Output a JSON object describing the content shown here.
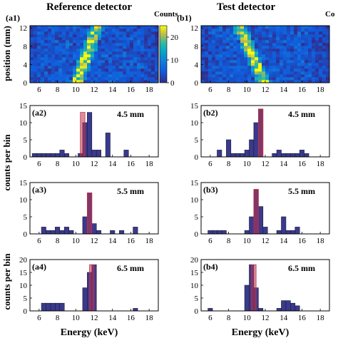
{
  "figure": {
    "left_title": "Reference detector",
    "right_title": "Test detector",
    "colorbar_label_left": "Counts",
    "colorbar_label_right": "Co",
    "y_label_top": "position (mm)",
    "y_label_mid": "counts per bin",
    "y_label_bottom": "counts per bin",
    "x_label": "Energy (keV)",
    "colors": {
      "bar": "#3a3a8c",
      "bar_edge": "#1a1a3a",
      "ref_bar": "#c0324a"
    }
  },
  "chart_data": [
    {
      "id": "a1",
      "panel_label": "(a1)",
      "type": "heatmap",
      "xlim": [
        5,
        19
      ],
      "xticks": [
        "6",
        "8",
        "10",
        "12",
        "14",
        "16",
        "18"
      ],
      "ylim": [
        0,
        12.5
      ],
      "yticks": [
        "0",
        "4",
        "8",
        "12"
      ],
      "colorbar": {
        "range": [
          0,
          25
        ],
        "ticks": [
          "0",
          "10",
          "20"
        ],
        "label": "Counts"
      },
      "ridge": {
        "start_energy": 10.2,
        "end_energy": 12.3
      }
    },
    {
      "id": "b1",
      "panel_label": "(b1)",
      "type": "heatmap",
      "xlim": [
        5,
        19
      ],
      "xticks": [
        "6",
        "8",
        "10",
        "12",
        "14",
        "16",
        "18"
      ],
      "ylim": [
        0,
        12.5
      ],
      "yticks": [
        "0",
        "4",
        "8",
        "12"
      ],
      "ridge": {
        "start_energy": 11.8,
        "end_energy": 9.2
      }
    },
    {
      "id": "a2",
      "panel_label": "(a2)",
      "type": "bar",
      "annotation": "4.5 mm",
      "xlim": [
        5,
        19
      ],
      "xticks": [
        "6",
        "8",
        "10",
        "12",
        "14",
        "16",
        "18"
      ],
      "ylim": [
        0,
        15
      ],
      "yticks": [
        "0",
        "5",
        "10",
        "15"
      ],
      "bin_width": 0.5,
      "x": [
        5.5,
        6.0,
        6.5,
        7.0,
        7.5,
        8.0,
        8.5,
        9.0,
        10.5,
        11.0,
        11.5,
        12.0,
        12.5,
        13.5,
        15.5
      ],
      "values": [
        1,
        1,
        1,
        1,
        1,
        1,
        2,
        1,
        1,
        10,
        13,
        2,
        2,
        7,
        2
      ],
      "reference": {
        "x": 10.75,
        "value": 13
      }
    },
    {
      "id": "b2",
      "panel_label": "(b2)",
      "type": "bar",
      "annotation": "4.5 mm",
      "xlim": [
        5,
        19
      ],
      "xticks": [
        "6",
        "8",
        "10",
        "12",
        "14",
        "16",
        "18"
      ],
      "ylim": [
        0,
        15
      ],
      "yticks": [
        "0",
        "5",
        "10",
        "15"
      ],
      "bin_width": 0.5,
      "x": [
        7.0,
        8.0,
        8.5,
        9.0,
        9.5,
        10.0,
        10.5,
        11.0,
        11.5,
        13.0,
        13.5,
        14.0,
        14.5,
        15.0,
        15.5,
        16.0,
        16.5
      ],
      "values": [
        2,
        5,
        1,
        1,
        1,
        2,
        5,
        10,
        14,
        1,
        2,
        1,
        1,
        1,
        1,
        2,
        1
      ],
      "reference": {
        "x": 11.5,
        "value": 14
      }
    },
    {
      "id": "a3",
      "panel_label": "(a3)",
      "type": "bar",
      "annotation": "5.5 mm",
      "xlim": [
        5,
        19
      ],
      "xticks": [
        "6",
        "8",
        "10",
        "12",
        "14",
        "16",
        "18"
      ],
      "ylim": [
        0,
        15
      ],
      "yticks": [
        "0",
        "5",
        "10",
        "15"
      ],
      "bin_width": 0.5,
      "x": [
        6.5,
        7.0,
        7.5,
        8.0,
        8.5,
        9.0,
        9.5,
        11.0,
        11.5,
        12.0,
        12.5,
        14.0,
        15.0,
        16.5
      ],
      "values": [
        2,
        1,
        1,
        2,
        1,
        2,
        1,
        5,
        12,
        3,
        1,
        1,
        1,
        2
      ],
      "reference": {
        "x": 11.5,
        "value": 12
      }
    },
    {
      "id": "b3",
      "panel_label": "(b3)",
      "type": "bar",
      "annotation": "5.5 mm",
      "xlim": [
        5,
        19
      ],
      "xticks": [
        "6",
        "8",
        "10",
        "12",
        "14",
        "16",
        "18"
      ],
      "ylim": [
        0,
        15
      ],
      "yticks": [
        "0",
        "5",
        "10",
        "15"
      ],
      "bin_width": 0.5,
      "x": [
        6.0,
        6.5,
        7.0,
        7.5,
        10.0,
        10.5,
        11.0,
        11.5,
        12.0,
        13.5,
        14.0,
        14.5,
        15.0,
        15.5
      ],
      "values": [
        1,
        1,
        1,
        1,
        1,
        5,
        13,
        8,
        2,
        1,
        5,
        1,
        1,
        2
      ],
      "reference": {
        "x": 11.0,
        "value": 13
      }
    },
    {
      "id": "a4",
      "panel_label": "(a4)",
      "type": "bar",
      "annotation": "6.5 mm",
      "xlim": [
        5,
        19
      ],
      "xticks": [
        "6",
        "8",
        "10",
        "12",
        "14",
        "16",
        "18"
      ],
      "ylim": [
        0,
        20
      ],
      "yticks": [
        "0",
        "5",
        "10",
        "15",
        "20"
      ],
      "bin_width": 0.5,
      "x": [
        6.5,
        7.0,
        7.5,
        8.0,
        8.5,
        11.0,
        11.5,
        12.0,
        16.5
      ],
      "values": [
        3,
        3,
        3,
        3,
        3,
        9,
        15,
        18,
        1
      ],
      "reference": {
        "x": 11.75,
        "value": 18
      }
    },
    {
      "id": "b4",
      "panel_label": "(b4)",
      "type": "bar",
      "annotation": "6.5 mm",
      "xlim": [
        5,
        19
      ],
      "xticks": [
        "6",
        "8",
        "10",
        "12",
        "14",
        "16",
        "18"
      ],
      "ylim": [
        0,
        20
      ],
      "yticks": [
        "0",
        "5",
        "10",
        "15",
        "20"
      ],
      "bin_width": 0.5,
      "x": [
        6.0,
        10.0,
        10.5,
        11.0,
        11.5,
        13.5,
        14.0,
        14.5,
        15.0,
        15.5
      ],
      "values": [
        1,
        10,
        18,
        9,
        1,
        1,
        4,
        4,
        3,
        2
      ],
      "reference": {
        "x": 10.75,
        "value": 18
      }
    }
  ]
}
